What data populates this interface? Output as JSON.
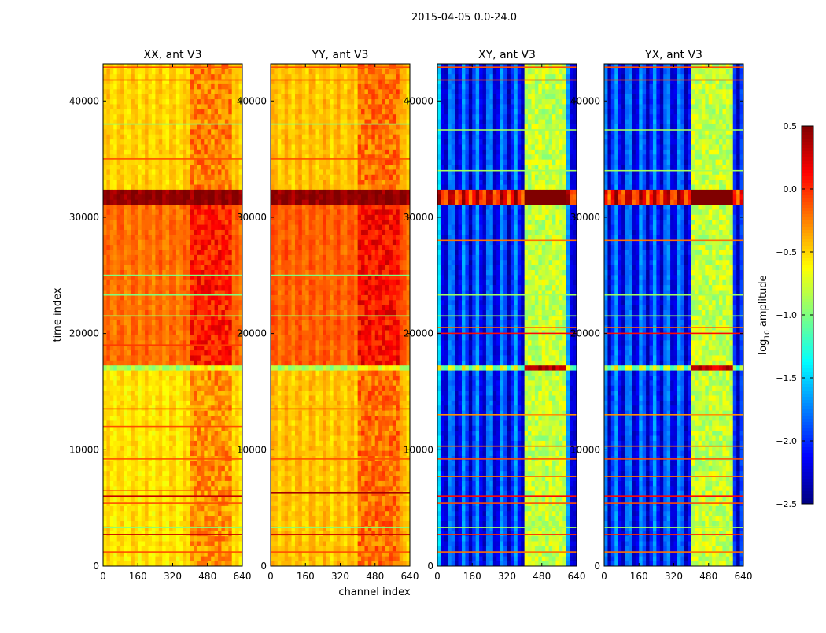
{
  "chart_data": {
    "type": "heatmap",
    "title": "2015-04-05 0.0-24.0",
    "xlabel": "channel index",
    "ylabel": "time index",
    "xlim": [
      0,
      640
    ],
    "ylim": [
      0,
      43200
    ],
    "xticks": [
      0,
      160,
      320,
      480,
      640
    ],
    "xtick_labels": [
      "0",
      "160",
      "320",
      "480",
      "640"
    ],
    "yticks": [
      0,
      10000,
      20000,
      30000,
      40000
    ],
    "ytick_labels": [
      "0",
      "10000",
      "20000",
      "30000",
      "40000"
    ],
    "colormap": "jet",
    "colorbar": {
      "label": "log10 amplitude",
      "label_base": "log",
      "label_sub": "10",
      "label_rest": " amplitude",
      "range": [
        -2.5,
        0.5
      ],
      "ticks": [
        0.5,
        0.0,
        -0.5,
        -1.0,
        -1.5,
        -2.0,
        -2.5
      ],
      "tick_labels": [
        "0.5",
        "0.0",
        "−0.5",
        "−1.0",
        "−1.5",
        "−2.0",
        "−2.5"
      ]
    },
    "panels": [
      {
        "title": "XX, ant V3",
        "segments": [
          [
            0,
            16700,
            -0.55
          ],
          [
            16700,
            17300,
            -0.9
          ],
          [
            17300,
            31000,
            -0.2
          ],
          [
            31000,
            32200,
            0.45
          ],
          [
            32200,
            43200,
            -0.5
          ]
        ],
        "band_channels": [
          400,
          600
        ],
        "band_offset": 0.25,
        "streak_amp": 0.08,
        "lines": [
          [
            1200,
            -0.1
          ],
          [
            2700,
            0.3
          ],
          [
            3300,
            -1.0
          ],
          [
            5400,
            -0.1
          ],
          [
            6000,
            0.3
          ],
          [
            6500,
            -0.1
          ],
          [
            9200,
            -0.1
          ],
          [
            12000,
            -0.1
          ],
          [
            13500,
            -0.1
          ],
          [
            19000,
            -0.05
          ],
          [
            21500,
            -0.9
          ],
          [
            23300,
            -1.0
          ],
          [
            25000,
            -1.0
          ],
          [
            35000,
            -0.1
          ],
          [
            38000,
            -1.0
          ],
          [
            41800,
            -0.1
          ],
          [
            42900,
            -0.1
          ]
        ]
      },
      {
        "title": "YY, ant V3",
        "segments": [
          [
            0,
            16700,
            -0.45
          ],
          [
            16700,
            17300,
            -0.9
          ],
          [
            17300,
            31000,
            -0.15
          ],
          [
            31000,
            32200,
            0.45
          ],
          [
            32200,
            43200,
            -0.45
          ]
        ],
        "band_channels": [
          400,
          600
        ],
        "band_offset": 0.25,
        "streak_amp": 0.08,
        "lines": [
          [
            1200,
            -0.1
          ],
          [
            2700,
            0.3
          ],
          [
            3300,
            -1.0
          ],
          [
            6300,
            0.4
          ],
          [
            9200,
            -0.1
          ],
          [
            13500,
            -0.1
          ],
          [
            21500,
            -0.9
          ],
          [
            25000,
            -1.0
          ],
          [
            35000,
            -0.1
          ],
          [
            38000,
            -1.0
          ],
          [
            41800,
            -0.1
          ],
          [
            42900,
            -0.1
          ]
        ]
      },
      {
        "title": "XY, ant V3",
        "segments": [
          [
            0,
            16700,
            -2.0
          ],
          [
            16700,
            17300,
            -0.9
          ],
          [
            17300,
            31000,
            -2.0
          ],
          [
            31000,
            32200,
            0.1
          ],
          [
            32200,
            43200,
            -2.0
          ]
        ],
        "band_channels": [
          400,
          600
        ],
        "band_offset": 1.2,
        "streak_amp": 0.35,
        "lines": [
          [
            1200,
            -0.2
          ],
          [
            2700,
            0.0
          ],
          [
            3300,
            -0.9
          ],
          [
            5400,
            -0.1
          ],
          [
            6000,
            0.1
          ],
          [
            7700,
            -0.2
          ],
          [
            9200,
            -0.1
          ],
          [
            10300,
            -0.2
          ],
          [
            13000,
            -0.3
          ],
          [
            20000,
            0.1
          ],
          [
            20500,
            -0.2
          ],
          [
            21500,
            -0.9
          ],
          [
            23300,
            -0.9
          ],
          [
            28000,
            -0.2
          ],
          [
            34000,
            -0.9
          ],
          [
            37500,
            -0.9
          ],
          [
            41800,
            -0.1
          ],
          [
            42900,
            -0.1
          ]
        ]
      },
      {
        "title": "YX, ant V3",
        "segments": [
          [
            0,
            16700,
            -2.0
          ],
          [
            16700,
            17300,
            -0.9
          ],
          [
            17300,
            31000,
            -2.0
          ],
          [
            31000,
            32200,
            0.1
          ],
          [
            32200,
            43200,
            -2.0
          ]
        ],
        "band_channels": [
          400,
          600
        ],
        "band_offset": 1.2,
        "streak_amp": 0.35,
        "lines": [
          [
            1200,
            -0.2
          ],
          [
            2700,
            0.0
          ],
          [
            3300,
            -0.9
          ],
          [
            5400,
            -0.1
          ],
          [
            6000,
            0.1
          ],
          [
            7700,
            -0.2
          ],
          [
            9200,
            -0.1
          ],
          [
            10300,
            -0.2
          ],
          [
            13000,
            -0.3
          ],
          [
            20000,
            0.1
          ],
          [
            20500,
            -0.2
          ],
          [
            21500,
            -0.9
          ],
          [
            23300,
            -0.9
          ],
          [
            28000,
            -0.2
          ],
          [
            34000,
            -0.9
          ],
          [
            37500,
            -0.9
          ],
          [
            41800,
            -0.1
          ],
          [
            42900,
            -0.1
          ]
        ]
      }
    ]
  }
}
